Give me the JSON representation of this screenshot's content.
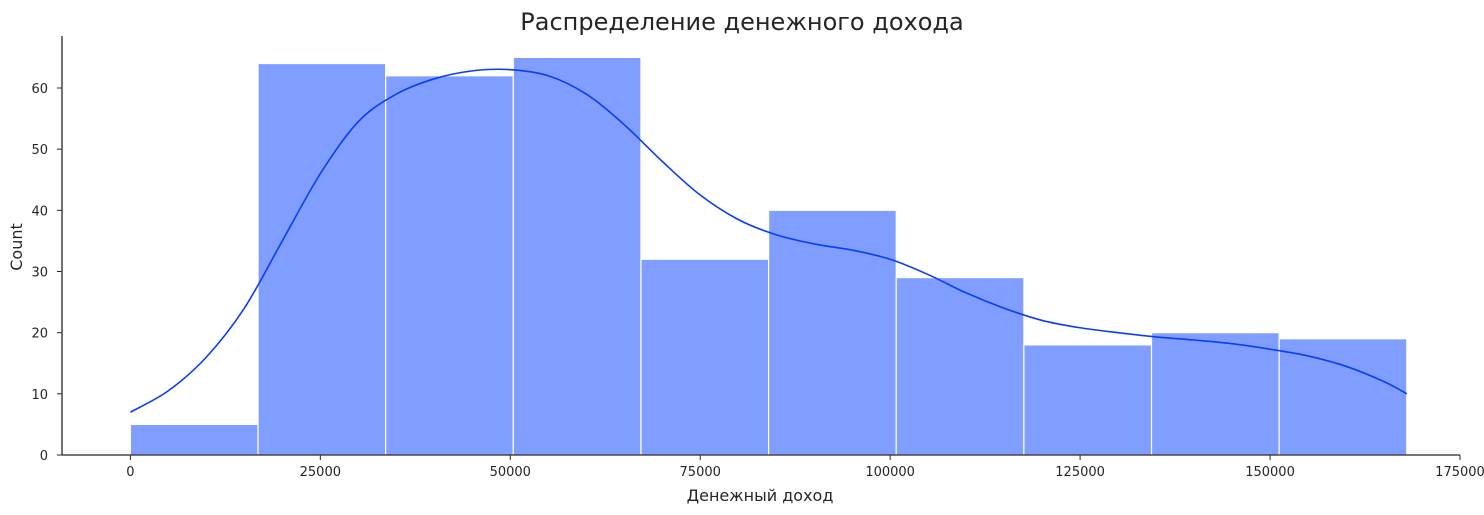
{
  "chart_data": {
    "type": "bar",
    "title": "Распределение денежного дохода",
    "xlabel": "Денежный доход",
    "ylabel": "Count",
    "xlim": [
      -9000,
      175000
    ],
    "ylim": [
      0,
      68.5
    ],
    "x_ticks": [
      0,
      25000,
      50000,
      75000,
      100000,
      125000,
      150000,
      175000
    ],
    "y_ticks": [
      0,
      10,
      20,
      30,
      40,
      50,
      60
    ],
    "bin_edges": [
      0,
      16800,
      33600,
      50400,
      67200,
      84000,
      100800,
      117600,
      134400,
      151200,
      168000
    ],
    "values": [
      5,
      64,
      62,
      65,
      32,
      40,
      29,
      18,
      20,
      19
    ],
    "kde": {
      "x": [
        0,
        5000,
        10000,
        15000,
        20000,
        25000,
        30000,
        35000,
        40000,
        45000,
        50000,
        55000,
        60000,
        65000,
        70000,
        75000,
        80000,
        85000,
        90000,
        95000,
        100000,
        105000,
        110000,
        115000,
        120000,
        125000,
        130000,
        135000,
        140000,
        145000,
        150000,
        155000,
        160000,
        165000,
        168000
      ],
      "y": [
        7,
        10.5,
        16,
        24,
        35,
        46,
        54.5,
        59,
        61.5,
        62.8,
        63,
        62,
        59,
        54,
        48,
        42.5,
        38.5,
        36,
        34.5,
        33.5,
        32,
        29.5,
        26.5,
        24,
        22,
        20.8,
        20,
        19.3,
        18.8,
        18.2,
        17.3,
        16.2,
        14.5,
        12,
        10
      ]
    },
    "grid": false,
    "colors": {
      "bar": "#809eff",
      "bar_edge": "#ffffff",
      "kde": "#0a3dfa",
      "axis": "#262626"
    }
  }
}
